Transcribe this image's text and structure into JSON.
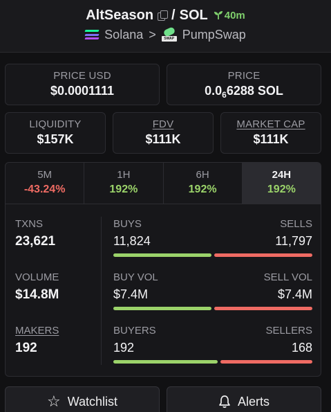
{
  "header": {
    "token_name": "AltSeason",
    "separator": "/",
    "quote": "SOL",
    "age": "40m",
    "chain": "Solana",
    "breadcrumb_sep": ">",
    "dex": "PumpSwap",
    "dex_logo_text": "SWAP"
  },
  "price_usd": {
    "label": "PRICE USD",
    "value": "$0.0001111"
  },
  "price_native": {
    "label": "PRICE",
    "prefix": "0.0",
    "subscript": "6",
    "digits": "6288",
    "unit": "SOL"
  },
  "liquidity": {
    "label": "LIQUIDITY",
    "value": "$157K"
  },
  "fdv": {
    "label": "FDV",
    "value": "$111K"
  },
  "market_cap": {
    "label": "MARKET CAP",
    "value": "$111K"
  },
  "tabs": [
    {
      "label": "5M",
      "value": "-43.24%"
    },
    {
      "label": "1H",
      "value": "192%"
    },
    {
      "label": "6H",
      "value": "192%"
    },
    {
      "label": "24H",
      "value": "192%"
    }
  ],
  "active_tab": "24H",
  "txns": {
    "label": "TXNS",
    "value": "23,621"
  },
  "volume": {
    "label": "VOLUME",
    "value": "$14.8M"
  },
  "makers": {
    "label": "MAKERS",
    "value": "192"
  },
  "buys_sells": {
    "left_label": "BUYS",
    "left_value": "11,824",
    "right_label": "SELLS",
    "right_value": "11,797",
    "left_share": 0.5
  },
  "vol_split": {
    "left_label": "BUY VOL",
    "left_value": "$7.4M",
    "right_label": "SELL VOL",
    "right_value": "$7.4M",
    "left_share": 0.5
  },
  "buyers_sellers": {
    "left_label": "BUYERS",
    "left_value": "192",
    "right_label": "SELLERS",
    "right_value": "168",
    "left_share": 0.533
  },
  "buttons": {
    "watchlist": "Watchlist",
    "alerts": "Alerts"
  },
  "colors": {
    "positive": "#9bd36a",
    "negative": "#ef6b63",
    "age": "#7fcf6c"
  }
}
